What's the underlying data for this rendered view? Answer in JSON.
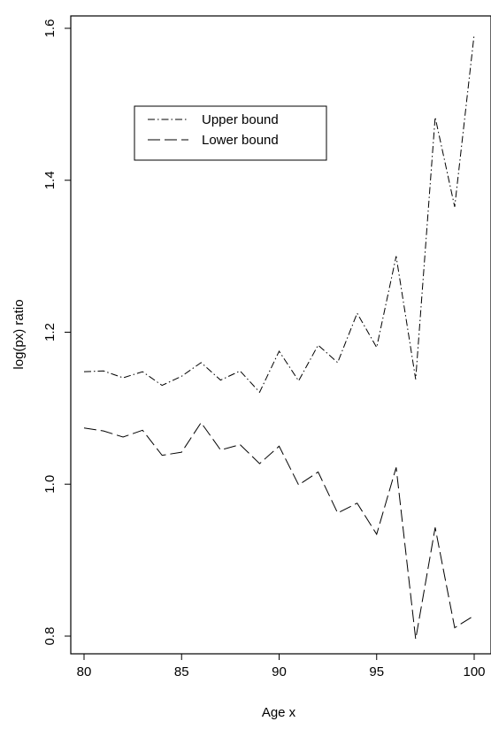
{
  "chart_data": {
    "type": "line",
    "title": "",
    "xlabel": "Age x",
    "ylabel": "log(px) ratio",
    "xlim": [
      80,
      100
    ],
    "ylim": [
      0.8,
      1.6
    ],
    "xticks": [
      80,
      85,
      90,
      95,
      100
    ],
    "yticks": [
      0.8,
      1.0,
      1.2,
      1.4,
      1.6
    ],
    "xtick_labels": [
      "80",
      "85",
      "90",
      "95",
      "100"
    ],
    "ytick_labels": [
      "0.8",
      "1.0",
      "1.2",
      "1.4",
      "1.6"
    ],
    "grid": false,
    "legend_position": "top-left",
    "x": [
      80,
      81,
      82,
      83,
      84,
      85,
      86,
      87,
      88,
      89,
      90,
      91,
      92,
      93,
      94,
      95,
      96,
      97,
      98,
      99,
      100
    ],
    "series": [
      {
        "name": "Upper bound",
        "linestyle": "dash-dot",
        "color": "#000000",
        "values": [
          1.148,
          1.149,
          1.14,
          1.148,
          1.13,
          1.142,
          1.16,
          1.137,
          1.149,
          1.121,
          1.175,
          1.136,
          1.183,
          1.16,
          1.225,
          1.18,
          1.3,
          1.138,
          1.483,
          1.365,
          1.592
        ]
      },
      {
        "name": "Lower bound",
        "linestyle": "dashed",
        "color": "#000000",
        "values": [
          1.074,
          1.07,
          1.062,
          1.071,
          1.038,
          1.042,
          1.081,
          1.045,
          1.052,
          1.027,
          1.05,
          0.999,
          1.016,
          0.962,
          0.975,
          0.934,
          1.022,
          0.796,
          0.943,
          0.811,
          0.827
        ]
      }
    ]
  }
}
